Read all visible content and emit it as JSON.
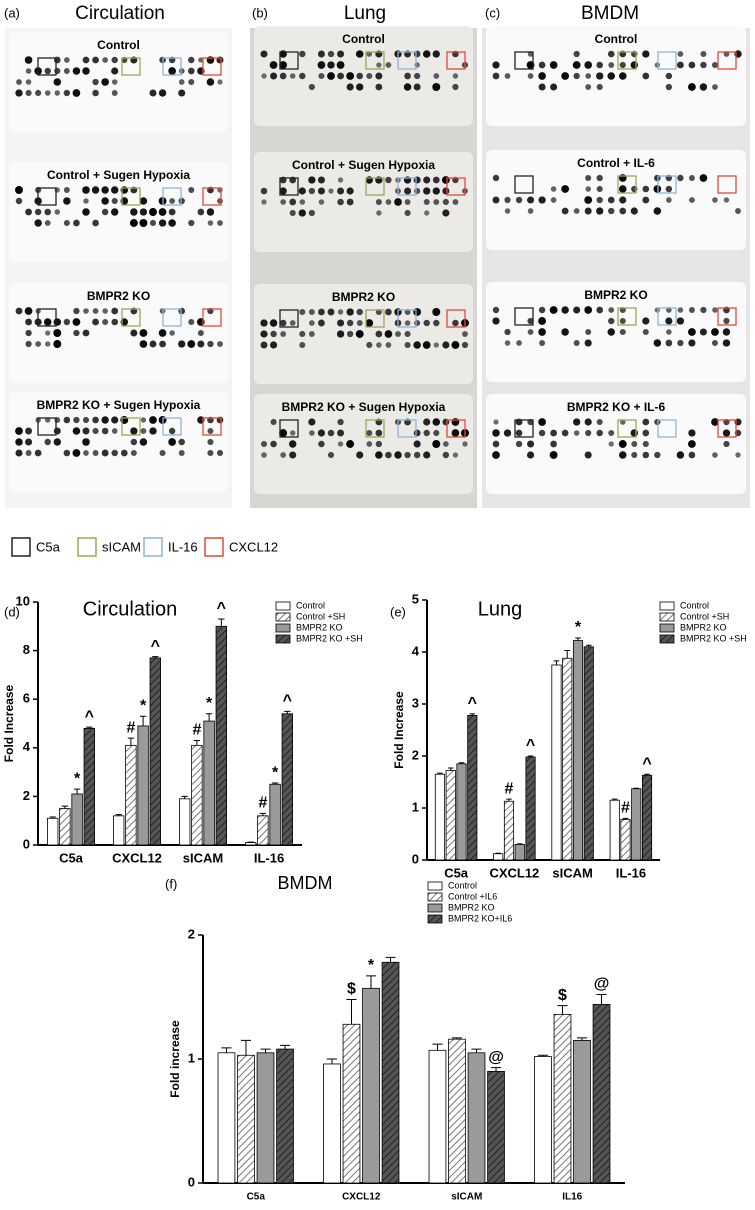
{
  "blots": {
    "panels": [
      {
        "label": "(a)",
        "title": "Circulation",
        "rows": [
          "Control",
          "Control + Sugen Hypoxia",
          "BMPR2 KO",
          "BMPR2 KO + Sugen Hypoxia"
        ]
      },
      {
        "label": "(b)",
        "title": "Lung",
        "rows": [
          "Control",
          "Control + Sugen Hypoxia",
          "BMPR2 KO",
          "BMPR2 KO + Sugen Hypoxia"
        ]
      },
      {
        "label": "(c)",
        "title": "BMDM",
        "rows": [
          "Control",
          "Control + IL-6",
          "BMPR2 KO",
          "BMPR2 KO + IL-6"
        ]
      }
    ]
  },
  "box_legend": {
    "items": [
      {
        "label": "C5a",
        "color": "#222222"
      },
      {
        "label": "sICAM",
        "color": "#9aa85a"
      },
      {
        "label": "IL-16",
        "color": "#8fb4d8"
      },
      {
        "label": "CXCL12",
        "color": "#e04a3a"
      }
    ]
  },
  "chart_data": [
    {
      "type": "bar",
      "label": "(d)",
      "title": "Circulation",
      "y_label": "Fold Increase",
      "categories": [
        "C5a",
        "CXCL12",
        "sICAM",
        "IL-16"
      ],
      "ylim": [
        0,
        10
      ],
      "yticks": [
        0,
        2,
        4,
        6,
        8,
        10
      ],
      "series": [
        {
          "name": "Control",
          "color": "#ffffff",
          "hatched": false,
          "values": [
            1.1,
            1.2,
            1.9,
            0.1
          ],
          "errors": [
            0.05,
            0.05,
            0.1,
            0.02
          ],
          "annotations": [
            null,
            null,
            null,
            null
          ]
        },
        {
          "name": "Control +SH",
          "color": "#ffffff",
          "hatched": true,
          "values": [
            1.5,
            4.1,
            4.1,
            1.2
          ],
          "errors": [
            0.1,
            0.3,
            0.2,
            0.1
          ],
          "annotations": [
            null,
            "#",
            "#",
            "#"
          ]
        },
        {
          "name": "BMPR2 KO",
          "color": "#9a9a9a",
          "hatched": false,
          "values": [
            2.1,
            4.9,
            5.1,
            2.5
          ],
          "errors": [
            0.2,
            0.4,
            0.3,
            0.05
          ],
          "annotations": [
            "*",
            "*",
            "*",
            "*"
          ]
        },
        {
          "name": "BMPR2 KO +SH",
          "color": "#555555",
          "hatched": true,
          "values": [
            4.8,
            7.7,
            9.0,
            5.4
          ],
          "errors": [
            0.05,
            0.05,
            0.3,
            0.1
          ],
          "annotations": [
            "^",
            "^",
            "^",
            "^"
          ]
        }
      ]
    },
    {
      "type": "bar",
      "label": "(e)",
      "title": "Lung",
      "y_label": "Fold Increase",
      "categories": [
        "C5a",
        "CXCL12",
        "sICAM",
        "IL-16"
      ],
      "ylim": [
        0,
        5
      ],
      "yticks": [
        0,
        1,
        2,
        3,
        4,
        5
      ],
      "series": [
        {
          "name": "Control",
          "color": "#ffffff",
          "hatched": false,
          "values": [
            1.65,
            0.12,
            3.75,
            1.15
          ],
          "errors": [
            0.02,
            0.01,
            0.08,
            0.02
          ],
          "annotations": [
            null,
            null,
            null,
            null
          ]
        },
        {
          "name": "Control +SH",
          "color": "#ffffff",
          "hatched": true,
          "values": [
            1.72,
            1.13,
            3.88,
            0.78
          ],
          "errors": [
            0.05,
            0.04,
            0.15,
            0.02
          ],
          "annotations": [
            null,
            "#",
            null,
            "#"
          ]
        },
        {
          "name": "BMPR2 KO",
          "color": "#9a9a9a",
          "hatched": false,
          "values": [
            1.85,
            0.3,
            4.22,
            1.37
          ],
          "errors": [
            0.02,
            0.01,
            0.05,
            0.01
          ],
          "annotations": [
            null,
            null,
            "*",
            null
          ]
        },
        {
          "name": "BMPR2 KO +SH",
          "color": "#555555",
          "hatched": true,
          "values": [
            2.78,
            1.98,
            4.1,
            1.63
          ],
          "errors": [
            0.03,
            0.02,
            0.03,
            0.02
          ],
          "annotations": [
            "^",
            "^",
            null,
            "^"
          ]
        }
      ]
    },
    {
      "type": "bar",
      "label": "(f)",
      "title": "BMDM",
      "y_label": "Fold increase",
      "categories": [
        "C5a",
        "CXCL12",
        "sICAM",
        "IL16"
      ],
      "ylim": [
        0,
        2
      ],
      "yticks": [
        0,
        1,
        2
      ],
      "series": [
        {
          "name": "Control",
          "color": "#ffffff",
          "hatched": false,
          "values": [
            1.05,
            0.96,
            1.07,
            1.02
          ],
          "errors": [
            0.04,
            0.04,
            0.05,
            0.01
          ],
          "annotations": [
            null,
            null,
            null,
            null
          ]
        },
        {
          "name": "Control +IL6",
          "color": "#ffffff",
          "hatched": true,
          "values": [
            1.03,
            1.28,
            1.16,
            1.36
          ],
          "errors": [
            0.12,
            0.2,
            0.01,
            0.07
          ],
          "annotations": [
            null,
            "$",
            null,
            "$"
          ]
        },
        {
          "name": "BMPR2 KO",
          "color": "#9a9a9a",
          "hatched": false,
          "values": [
            1.05,
            1.57,
            1.05,
            1.15
          ],
          "errors": [
            0.03,
            0.1,
            0.03,
            0.02
          ],
          "annotations": [
            null,
            "*",
            null,
            null
          ]
        },
        {
          "name": "BMPR2 KO+IL6",
          "color": "#555555",
          "hatched": true,
          "values": [
            1.08,
            1.78,
            0.9,
            1.44
          ],
          "errors": [
            0.03,
            0.04,
            0.03,
            0.08
          ],
          "annotations": [
            null,
            null,
            "@",
            "@"
          ]
        }
      ]
    }
  ]
}
